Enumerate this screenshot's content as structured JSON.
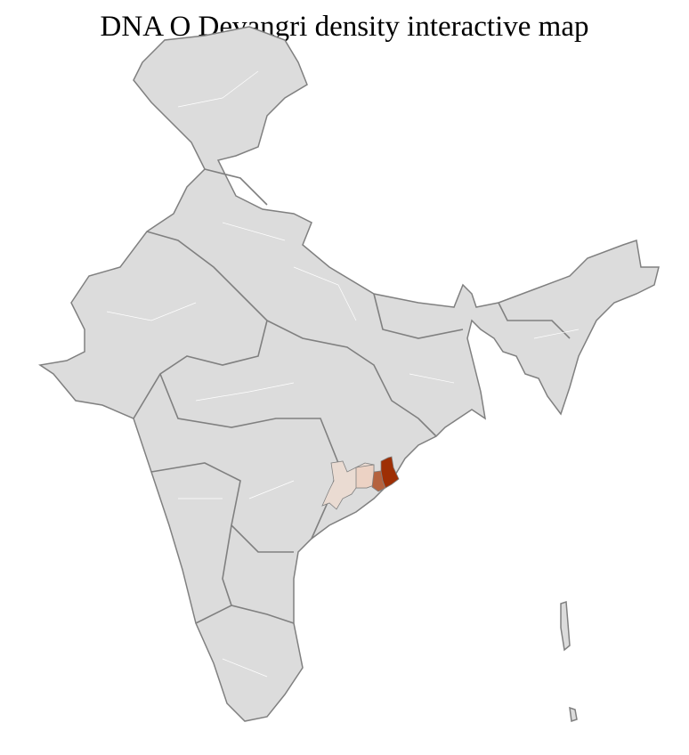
{
  "title": "DNA O Devangri density interactive map",
  "map": {
    "base_fill": "#dcdcdc",
    "district_border": "#ffffff",
    "state_border": "#808080",
    "density_colors": {
      "highest": "#9e2f05",
      "high": "#b5623e",
      "low": "#ecd2c4",
      "lowest": "#eadbd2"
    }
  }
}
